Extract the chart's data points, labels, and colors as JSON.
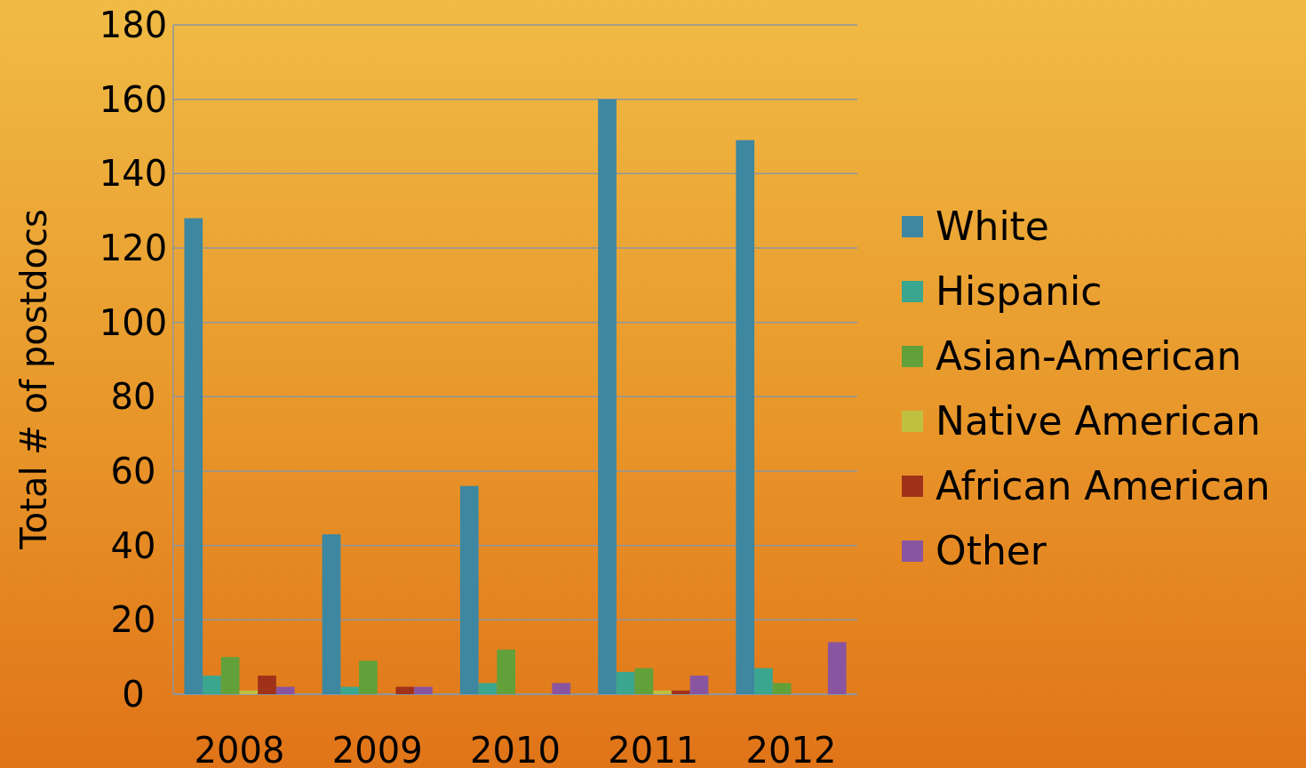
{
  "chart_data": {
    "type": "bar",
    "ylabel": "Total # of postdocs",
    "categories": [
      "2008",
      "2009",
      "2010",
      "2011",
      "2012"
    ],
    "ylim": [
      0,
      180
    ],
    "yticks": [
      0,
      20,
      40,
      60,
      80,
      100,
      120,
      140,
      160,
      180
    ],
    "grid": "y",
    "legend": "right",
    "series": [
      {
        "name": "White",
        "color": "#3d87a0",
        "values": [
          128,
          43,
          56,
          160,
          149
        ]
      },
      {
        "name": "Hispanic",
        "color": "#3aa690",
        "values": [
          5,
          2,
          3,
          6,
          7
        ]
      },
      {
        "name": "Asian-American",
        "color": "#62a03a",
        "values": [
          10,
          9,
          12,
          7,
          3
        ]
      },
      {
        "name": "Native American",
        "color": "#c0c040",
        "values": [
          1,
          0,
          0,
          1,
          0
        ]
      },
      {
        "name": "African American",
        "color": "#a0321a",
        "values": [
          5,
          2,
          0,
          1,
          0
        ]
      },
      {
        "name": "Other",
        "color": "#8a55a0",
        "values": [
          2,
          2,
          3,
          5,
          14
        ]
      }
    ]
  }
}
